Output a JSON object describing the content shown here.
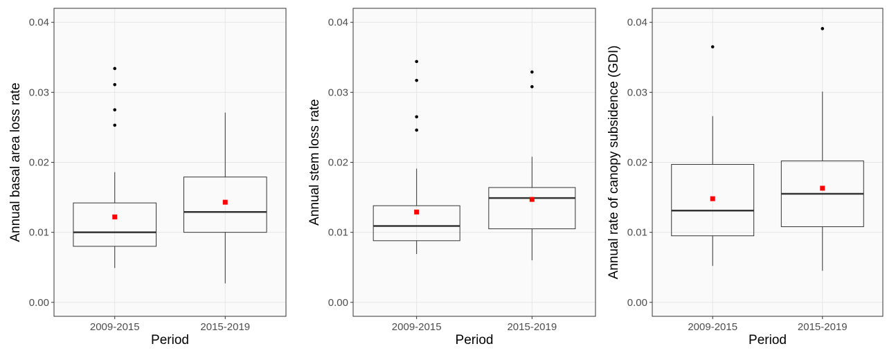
{
  "chart_data": [
    {
      "type": "box",
      "y_label": "Annual basal area loss rate",
      "x_label": "Period",
      "categories": [
        "2009-2015",
        "2015-2019"
      ],
      "boxes": [
        {
          "min": 0.0049,
          "q1": 0.008,
          "median": 0.01,
          "q3": 0.0142,
          "max": 0.0186,
          "mean": 0.0122,
          "outliers": [
            0.0253,
            0.0275,
            0.0311,
            0.0334
          ]
        },
        {
          "min": 0.0027,
          "q1": 0.01,
          "median": 0.0129,
          "q3": 0.0179,
          "max": 0.0271,
          "mean": 0.0143,
          "outliers": []
        }
      ],
      "box_color": "#333333",
      "mean_color": "#ff0000",
      "outlier_color": "#000000",
      "ylim": [
        -0.002,
        0.042
      ],
      "yticks": [
        {
          "value": 0,
          "label": "0.00"
        },
        0.01,
        0.02,
        0.03,
        0.04
      ],
      "grid": true
    },
    {
      "type": "box",
      "y_label": "Annual stem loss rate",
      "x_label": "Period",
      "categories": [
        "2009-2015",
        "2015-2019"
      ],
      "boxes": [
        {
          "min": 0.0069,
          "q1": 0.0088,
          "median": 0.0109,
          "q3": 0.0138,
          "max": 0.0191,
          "mean": 0.0129,
          "outliers": [
            0.0246,
            0.0265,
            0.0317,
            0.0344
          ]
        },
        {
          "min": 0.006,
          "q1": 0.0105,
          "median": 0.0149,
          "q3": 0.0164,
          "max": 0.0208,
          "mean": 0.0147,
          "outliers": [
            0.0308,
            0.0329
          ]
        }
      ],
      "box_color": "#333333",
      "mean_color": "#ff0000",
      "outlier_color": "#000000",
      "ylim": [
        -0.002,
        0.042
      ],
      "yticks": [
        {
          "value": 0,
          "label": "0.00"
        },
        0.01,
        0.02,
        0.03,
        0.04
      ],
      "grid": true
    },
    {
      "type": "box",
      "y_label": "Annual rate of canopy subsidence (GDI)",
      "x_label": "Period",
      "categories": [
        "2009-2015",
        "2015-2019"
      ],
      "boxes": [
        {
          "min": 0.0052,
          "q1": 0.0095,
          "median": 0.0131,
          "q3": 0.0197,
          "max": 0.0266,
          "mean": 0.0148,
          "outliers": [
            0.0365
          ]
        },
        {
          "min": 0.0045,
          "q1": 0.0108,
          "median": 0.0155,
          "q3": 0.0202,
          "max": 0.0301,
          "mean": 0.0163,
          "outliers": [
            0.0391
          ]
        }
      ],
      "box_color": "#333333",
      "mean_color": "#ff0000",
      "outlier_color": "#000000",
      "ylim": [
        -0.002,
        0.042
      ],
      "yticks": [
        {
          "value": 0,
          "label": "0.00"
        },
        0.01,
        0.02,
        0.03,
        0.04
      ],
      "grid": true
    }
  ]
}
